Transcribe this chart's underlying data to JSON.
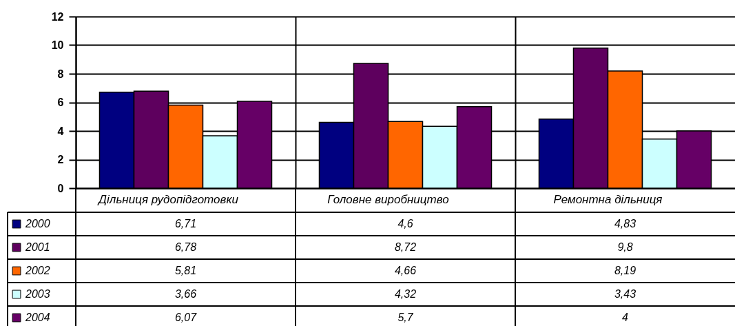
{
  "chart_data": {
    "type": "bar",
    "categories": [
      "Дільниця рудопідготовки",
      "Головне виробництво",
      "Ремонтна дільниця"
    ],
    "series": [
      {
        "name": "2000",
        "color": "#000080",
        "values": [
          6.71,
          4.6,
          4.83
        ],
        "value_labels": [
          "6,71",
          "4,6",
          "4,83"
        ]
      },
      {
        "name": "2001",
        "color": "#5e005e",
        "values": [
          6.78,
          8.72,
          9.8
        ],
        "value_labels": [
          "6,78",
          "8,72",
          "9,8"
        ]
      },
      {
        "name": "2002",
        "color": "#ff6600",
        "values": [
          5.81,
          4.66,
          8.19
        ],
        "value_labels": [
          "5,81",
          "4,66",
          "8,19"
        ]
      },
      {
        "name": "2003",
        "color": "#ccffff",
        "values": [
          3.66,
          4.32,
          3.43
        ],
        "value_labels": [
          "3,66",
          "4,32",
          "3,43"
        ]
      },
      {
        "name": "2004",
        "color": "#660066",
        "values": [
          6.07,
          5.7,
          4
        ],
        "value_labels": [
          "6,07",
          "5,7",
          "4"
        ]
      }
    ],
    "ylim": [
      0,
      12
    ],
    "yticks": [
      0,
      2,
      4,
      6,
      8,
      10,
      12
    ],
    "grid": true,
    "legend": "bottom"
  }
}
